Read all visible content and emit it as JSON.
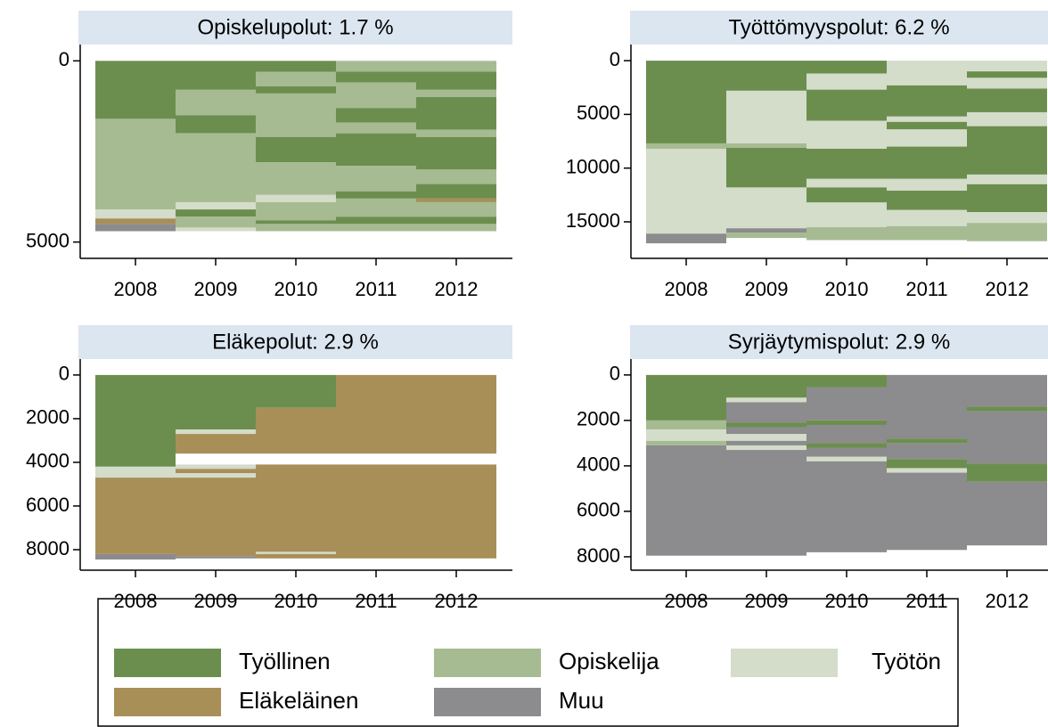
{
  "chart_data": [
    {
      "type": "sequence",
      "title": "Opiskelupolut: 1.7 %",
      "categories": [
        "2008",
        "2009",
        "2010",
        "2011",
        "2012"
      ],
      "y_inverted": true,
      "ylim": [
        -450,
        5450
      ],
      "yticks": [
        0,
        5000
      ],
      "segments": [
        [
          [
            "Työllinen",
            1600
          ],
          [
            "Opiskelija",
            2500
          ],
          [
            "Työtön",
            250
          ],
          [
            "Eläkeläinen",
            150
          ],
          [
            "Muu",
            200
          ]
        ],
        [
          [
            "Työllinen",
            800
          ],
          [
            "Opiskelija",
            700
          ],
          [
            "Työllinen",
            500
          ],
          [
            "Opiskelija",
            1900
          ],
          [
            "Työtön",
            200
          ],
          [
            "Työllinen",
            200
          ],
          [
            "Opiskelija",
            300
          ],
          [
            "Työtön",
            100
          ]
        ],
        [
          [
            "Työllinen",
            300
          ],
          [
            "Opiskelija",
            400
          ],
          [
            "Työllinen",
            200
          ],
          [
            "Opiskelija",
            1200
          ],
          [
            "Työllinen",
            700
          ],
          [
            "Opiskelija",
            900
          ],
          [
            "Työtön",
            200
          ],
          [
            "Opiskelija",
            500
          ],
          [
            "Työllinen",
            100
          ],
          [
            "Opiskelija",
            200
          ]
        ],
        [
          [
            "Opiskelija",
            300
          ],
          [
            "Työllinen",
            300
          ],
          [
            "Opiskelija",
            700
          ],
          [
            "Työllinen",
            400
          ],
          [
            "Opiskelija",
            300
          ],
          [
            "Työllinen",
            900
          ],
          [
            "Opiskelija",
            700
          ],
          [
            "Työllinen",
            200
          ],
          [
            "Opiskelija",
            500
          ],
          [
            "Työllinen",
            200
          ],
          [
            "Opiskelija",
            200
          ]
        ],
        [
          [
            "Opiskelija",
            300
          ],
          [
            "Työllinen",
            500
          ],
          [
            "Opiskelija",
            200
          ],
          [
            "Työllinen",
            900
          ],
          [
            "Opiskelija",
            200
          ],
          [
            "Työllinen",
            900
          ],
          [
            "Opiskelija",
            400
          ],
          [
            "Työllinen",
            400
          ],
          [
            "Eläkeläinen",
            100
          ],
          [
            "Opiskelija",
            400
          ],
          [
            "Työllinen",
            200
          ],
          [
            "Opiskelija",
            200
          ]
        ]
      ]
    },
    {
      "type": "sequence",
      "title": "Työttömyyspolut: 6.2 %",
      "categories": [
        "2008",
        "2009",
        "2010",
        "2011",
        "2012"
      ],
      "y_inverted": true,
      "ylim": [
        -1500,
        18400
      ],
      "yticks": [
        0,
        5000,
        10000,
        15000
      ],
      "segments": [
        [
          [
            "Työllinen",
            7700
          ],
          [
            "Opiskelija",
            500
          ],
          [
            "Työtön",
            7900
          ],
          [
            "Muu",
            900
          ]
        ],
        [
          [
            "Työllinen",
            2800
          ],
          [
            "Työtön",
            4900
          ],
          [
            "Opiskelija",
            400
          ],
          [
            "Työllinen",
            3700
          ],
          [
            "Työtön",
            3800
          ],
          [
            "Muu",
            400
          ],
          [
            "Opiskelija",
            500
          ]
        ],
        [
          [
            "Työllinen",
            1200
          ],
          [
            "Työtön",
            1500
          ],
          [
            "Työllinen",
            2900
          ],
          [
            "Työtön",
            2600
          ],
          [
            "Työllinen",
            2800
          ],
          [
            "Työtön",
            800
          ],
          [
            "Työllinen",
            1400
          ],
          [
            "Työtön",
            2300
          ],
          [
            "Opiskelija",
            1200
          ]
        ],
        [
          [
            "Työtön",
            2300
          ],
          [
            "Työllinen",
            2900
          ],
          [
            "Työtön",
            500
          ],
          [
            "Työllinen",
            700
          ],
          [
            "Työtön",
            1600
          ],
          [
            "Työllinen",
            3000
          ],
          [
            "Työtön",
            1100
          ],
          [
            "Työllinen",
            1800
          ],
          [
            "Työtön",
            1500
          ],
          [
            "Opiskelija",
            1300
          ]
        ],
        [
          [
            "Työtön",
            1000
          ],
          [
            "Työllinen",
            600
          ],
          [
            "Työtön",
            1000
          ],
          [
            "Työllinen",
            2200
          ],
          [
            "Työtön",
            1300
          ],
          [
            "Työllinen",
            4500
          ],
          [
            "Työtön",
            900
          ],
          [
            "Työllinen",
            2600
          ],
          [
            "Työtön",
            1000
          ],
          [
            "Opiskelija",
            1700
          ]
        ]
      ]
    },
    {
      "type": "sequence",
      "title": "Eläkepolut: 2.9 %",
      "categories": [
        "2008",
        "2009",
        "2010",
        "2011",
        "2012"
      ],
      "y_inverted": true,
      "ylim": [
        -730,
        8940
      ],
      "yticks": [
        0,
        2000,
        4000,
        6000,
        8000
      ],
      "segments": [
        [
          [
            "Työllinen",
            4200
          ],
          [
            "Työtön",
            500
          ],
          [
            "Eläkeläinen",
            3500
          ],
          [
            "Muu",
            250
          ]
        ],
        [
          [
            "Työllinen",
            2500
          ],
          [
            "Työtön",
            200
          ],
          [
            "Eläkeläinen",
            900
          ],
          [
            null,
            500
          ],
          [
            "Työtön",
            200
          ],
          [
            "Eläkeläinen",
            200
          ],
          [
            "Työtön",
            200
          ],
          [
            "Eläkeläinen",
            3600
          ],
          [
            "Muu",
            100
          ]
        ],
        [
          [
            "Työllinen",
            1500
          ],
          [
            "Eläkeläinen",
            2100
          ],
          [
            null,
            500
          ],
          [
            "Eläkeläinen",
            4000
          ],
          [
            "Työtön",
            100
          ],
          [
            "Eläkeläinen",
            200
          ]
        ],
        [
          [
            "Eläkeläinen",
            3600
          ],
          [
            null,
            500
          ],
          [
            "Eläkeläinen",
            4300
          ]
        ],
        [
          [
            "Eläkeläinen",
            3600
          ],
          [
            null,
            500
          ],
          [
            "Eläkeläinen",
            4300
          ]
        ]
      ]
    },
    {
      "type": "sequence",
      "title": "Syrjäytymispolut: 2.9 %",
      "categories": [
        "2008",
        "2009",
        "2010",
        "2011",
        "2012"
      ],
      "y_inverted": true,
      "ylim": [
        -700,
        8590
      ],
      "yticks": [
        0,
        2000,
        4000,
        6000,
        8000
      ],
      "segments": [
        [
          [
            "Työllinen",
            2000
          ],
          [
            "Opiskelija",
            400
          ],
          [
            "Työtön",
            500
          ],
          [
            "Opiskelija",
            200
          ],
          [
            "Muu",
            4850
          ]
        ],
        [
          [
            "Työllinen",
            1000
          ],
          [
            "Työtön",
            200
          ],
          [
            "Muu",
            900
          ],
          [
            "Työllinen",
            200
          ],
          [
            "Muu",
            300
          ],
          [
            "Työtön",
            300
          ],
          [
            "Muu",
            200
          ],
          [
            "Työtön",
            200
          ],
          [
            "Muu",
            4650
          ]
        ],
        [
          [
            "Työllinen",
            550
          ],
          [
            "Muu",
            1450
          ],
          [
            "Työllinen",
            200
          ],
          [
            "Muu",
            800
          ],
          [
            "Työllinen",
            200
          ],
          [
            "Muu",
            400
          ],
          [
            "Työtön",
            200
          ],
          [
            "Muu",
            4000
          ]
        ],
        [
          [
            "Muu",
            2800
          ],
          [
            "Työllinen",
            200
          ],
          [
            "Muu",
            700
          ],
          [
            "Työllinen",
            400
          ],
          [
            "Työtön",
            200
          ],
          [
            "Muu",
            3400
          ]
        ],
        [
          [
            "Muu",
            1400
          ],
          [
            "Työllinen",
            200
          ],
          [
            "Muu",
            2300
          ],
          [
            "Työllinen",
            800
          ],
          [
            "Muu",
            2800
          ]
        ]
      ]
    }
  ],
  "legend": [
    {
      "name": "Työllinen",
      "color": "#6b8e4e"
    },
    {
      "name": "Opiskelija",
      "color": "#a6bb92"
    },
    {
      "name": "Työtön",
      "color": "#d4dcca"
    },
    {
      "name": "Eläkeläinen",
      "color": "#a88f58"
    },
    {
      "name": "Muu",
      "color": "#8c8b8d"
    }
  ]
}
